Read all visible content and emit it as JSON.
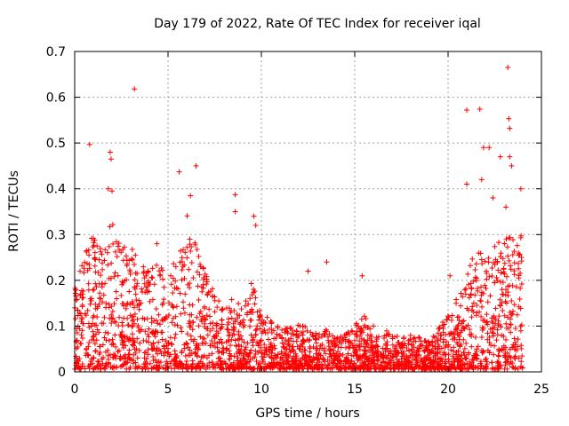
{
  "chart_data": {
    "type": "scatter",
    "title": "Day 179 of 2022, Rate Of TEC Index for receiver iqal",
    "xlabel": "GPS time / hours",
    "ylabel": "ROTI / TECUs",
    "xlim": [
      0,
      25
    ],
    "ylim": [
      0,
      0.7
    ],
    "xticks": [
      0,
      5,
      10,
      15,
      20,
      25
    ],
    "yticks": [
      0,
      0.1,
      0.2,
      0.3,
      0.4,
      0.5,
      0.6,
      0.7
    ],
    "grid": true,
    "marker": "plus",
    "series": [
      {
        "color": "#ff0000",
        "envelope": [
          [
            0.0,
            0.19
          ],
          [
            0.5,
            0.26
          ],
          [
            1.0,
            0.3
          ],
          [
            1.5,
            0.26
          ],
          [
            2.0,
            0.33
          ],
          [
            2.5,
            0.27
          ],
          [
            3.0,
            0.3
          ],
          [
            3.5,
            0.23
          ],
          [
            4.0,
            0.22
          ],
          [
            4.5,
            0.23
          ],
          [
            5.0,
            0.2
          ],
          [
            5.5,
            0.27
          ],
          [
            6.0,
            0.34
          ],
          [
            6.5,
            0.28
          ],
          [
            7.0,
            0.22
          ],
          [
            7.5,
            0.17
          ],
          [
            8.0,
            0.14
          ],
          [
            8.5,
            0.16
          ],
          [
            9.0,
            0.13
          ],
          [
            9.5,
            0.2
          ],
          [
            10.0,
            0.12
          ],
          [
            10.5,
            0.11
          ],
          [
            11.0,
            0.1
          ],
          [
            11.5,
            0.09
          ],
          [
            12.0,
            0.1
          ],
          [
            12.5,
            0.09
          ],
          [
            13.0,
            0.08
          ],
          [
            13.5,
            0.09
          ],
          [
            14.0,
            0.07
          ],
          [
            14.5,
            0.08
          ],
          [
            15.0,
            0.1
          ],
          [
            15.5,
            0.13
          ],
          [
            16.0,
            0.07
          ],
          [
            16.5,
            0.09
          ],
          [
            17.0,
            0.08
          ],
          [
            17.5,
            0.07
          ],
          [
            18.0,
            0.08
          ],
          [
            18.5,
            0.07
          ],
          [
            19.0,
            0.06
          ],
          [
            19.5,
            0.09
          ],
          [
            20.0,
            0.12
          ],
          [
            20.5,
            0.16
          ],
          [
            21.0,
            0.2
          ],
          [
            21.5,
            0.27
          ],
          [
            22.0,
            0.24
          ],
          [
            22.5,
            0.28
          ],
          [
            23.0,
            0.3
          ],
          [
            23.5,
            0.32
          ],
          [
            24.0,
            0.3
          ]
        ],
        "outliers": [
          [
            0.8,
            0.497
          ],
          [
            3.2,
            0.618
          ],
          [
            1.9,
            0.48
          ],
          [
            1.95,
            0.465
          ],
          [
            5.6,
            0.437
          ],
          [
            6.5,
            0.45
          ],
          [
            6.2,
            0.385
          ],
          [
            8.6,
            0.387
          ],
          [
            8.6,
            0.35
          ],
          [
            21.0,
            0.572
          ],
          [
            21.7,
            0.574
          ],
          [
            22.2,
            0.49
          ],
          [
            21.9,
            0.49
          ],
          [
            22.8,
            0.47
          ],
          [
            23.2,
            0.665
          ],
          [
            23.25,
            0.553
          ],
          [
            23.3,
            0.532
          ],
          [
            23.3,
            0.47
          ],
          [
            23.4,
            0.45
          ],
          [
            23.9,
            0.4
          ],
          [
            1.8,
            0.4
          ],
          [
            2.0,
            0.395
          ],
          [
            4.4,
            0.28
          ],
          [
            13.5,
            0.24
          ],
          [
            12.5,
            0.22
          ],
          [
            9.6,
            0.34
          ],
          [
            9.7,
            0.32
          ],
          [
            15.4,
            0.21
          ],
          [
            16.0,
            0.1
          ],
          [
            20.1,
            0.21
          ],
          [
            21.0,
            0.41
          ],
          [
            21.8,
            0.42
          ],
          [
            22.4,
            0.38
          ],
          [
            23.1,
            0.36
          ]
        ]
      }
    ]
  }
}
